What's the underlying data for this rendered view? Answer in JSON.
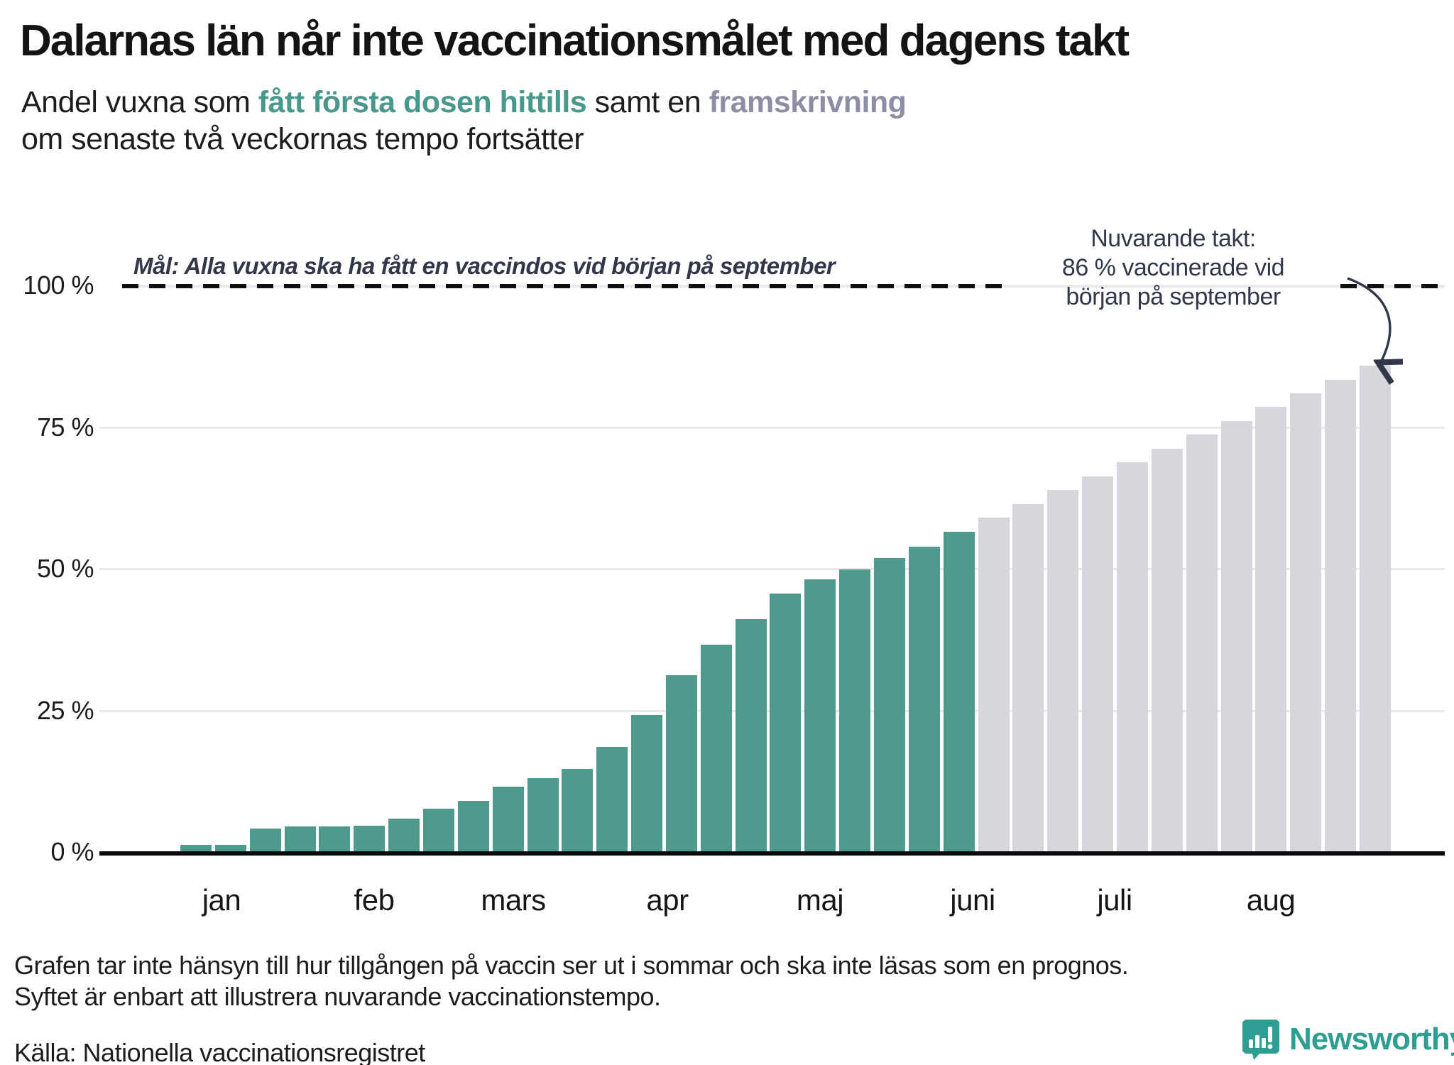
{
  "title": "Dalarnas län når inte vaccinationsmålet med dagens takt",
  "subtitle": {
    "prefix": "Andel vuxna som ",
    "highlight_teal": "fått första dosen hittills",
    "middle": " samt en ",
    "highlight_gray": "framskrivning",
    "line2": "om senaste två veckornas tempo fortsätter"
  },
  "goal_label": "Mål: Alla vuxna ska ha fått en vaccindos vid början på september",
  "annotation": {
    "line1": "Nuvarande takt:",
    "line2": "86 % vaccinerade vid",
    "line3": "början på september"
  },
  "footnote_line1": "Grafen tar inte hänsyn till hur tillgången på vaccin ser ut i sommar och ska inte läsas som en prognos.",
  "footnote_line2": "Syftet är enbart att illustrera nuvarande vaccinationstempo.",
  "source": "Källa: Nationella vaccinationsregistret",
  "logo_text": "Newsworthy",
  "colors": {
    "actual_bar": "#4e9b8e",
    "projection_bar": "#d6d6dc",
    "teal_text": "#48998b",
    "projection_text": "#8d8da5",
    "annotation_text": "#323749",
    "gridline": "#e9e9ec",
    "axis": "#0a0a0a",
    "logo_teal": "#2e9e93"
  },
  "chart_data": {
    "type": "bar",
    "title": "Andel vuxna som fått första dosen hittills samt en framskrivning om senaste två veckornas tempo fortsätter",
    "unit": "percent of adults, weekly cumulative",
    "ylim": [
      0,
      100
    ],
    "y_ticks": [
      "100 %",
      "75 %",
      "50 %",
      "25 %",
      "0 %"
    ],
    "y_tick_values": [
      100,
      75,
      50,
      25,
      0
    ],
    "x_tick_labels": [
      "jan",
      "feb",
      "mars",
      "apr",
      "maj",
      "juni",
      "juli",
      "aug"
    ],
    "goal_line_value": 100,
    "goal_line_style": "dashed",
    "grid": true,
    "legend_position": "in-subtitle",
    "series": [
      {
        "name": "fått första dosen hittills",
        "color": "#4e9b8e",
        "values": [
          1.4,
          1.4,
          4.3,
          4.6,
          4.6,
          4.8,
          6.0,
          7.8,
          9.2,
          11.7,
          13.2,
          14.8,
          18.7,
          24.3,
          31.3,
          36.7,
          41.2,
          45.7,
          48.2,
          50.0,
          52.0,
          54.0,
          56.7
        ]
      },
      {
        "name": "framskrivning",
        "color": "#d6d6dc",
        "values": [
          59.1,
          61.5,
          64.0,
          66.4,
          68.9,
          71.3,
          73.8,
          76.2,
          78.7,
          81.1,
          83.5,
          86.0
        ]
      }
    ],
    "projection_end_value": 86
  }
}
